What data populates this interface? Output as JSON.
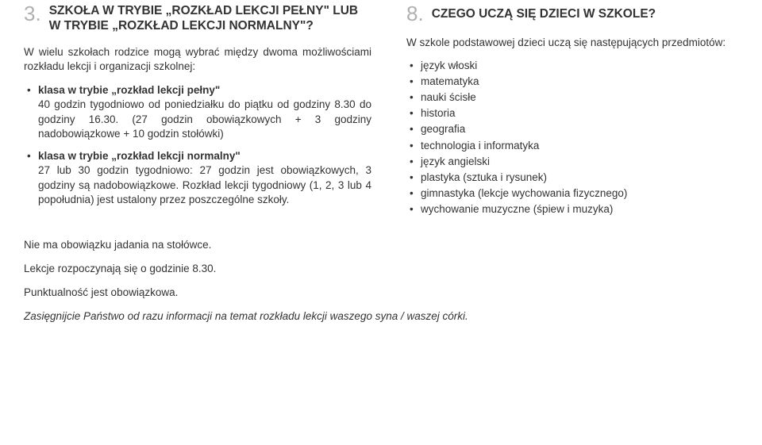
{
  "left": {
    "num": "3.",
    "title": "SZKOŁA W TRYBIE „ROZKŁAD LEKCJI PEŁNY\" LUB W TRYBIE „ROZKŁAD LEKCJI NORMALNY\"?",
    "intro": "W wielu szkołach rodzice mogą wybrać między dwoma możliwościami rozkładu lekcji i organizacji szkolnej:",
    "item1_head": "klasa w trybie „rozkład lekcji pełny\"",
    "item1_body": "40 godzin tygodniowo od poniedziałku do piątku od godziny 8.30 do godziny 16.30. (27 godzin obowiązkowych + 3 godziny nadobowiązkowe + 10 godzin stołówki)",
    "item2_head": "klasa w trybie „rozkład lekcji normalny\"",
    "item2_body": "27 lub 30 godzin tygodniowo: 27 godzin jest obowiązkowych, 3 godziny są nadobowiązkowe. Rozkład lekcji tygodniowy (1, 2, 3 lub 4 popołudnia) jest ustalony przez poszczególne szkoły."
  },
  "right": {
    "num": "8.",
    "title": "CZEGO UCZĄ SIĘ DZIECI W SZKOLE?",
    "intro": "W szkole podstawowej dzieci uczą się następujących przedmiotów:",
    "subjects": [
      "język włoski",
      "matematyka",
      "nauki ścisłe",
      "historia",
      "geografia",
      "technologia i informatyka",
      "język angielski",
      "plastyka (sztuka i rysunek)",
      "gimnastyka (lekcje wychowania fizycznego)",
      "wychowanie muzyczne (śpiew i muzyka)"
    ]
  },
  "footer": {
    "p1": "Nie ma obowiązku jadania na stołówce.",
    "p2": "Lekcje rozpoczynają się o godzinie 8.30.",
    "p3": "Punktualność jest obowiązkowa.",
    "p4": "Zasięgnijcie Państwo od razu informacji na temat rozkładu lekcji waszego syna / waszej córki."
  }
}
